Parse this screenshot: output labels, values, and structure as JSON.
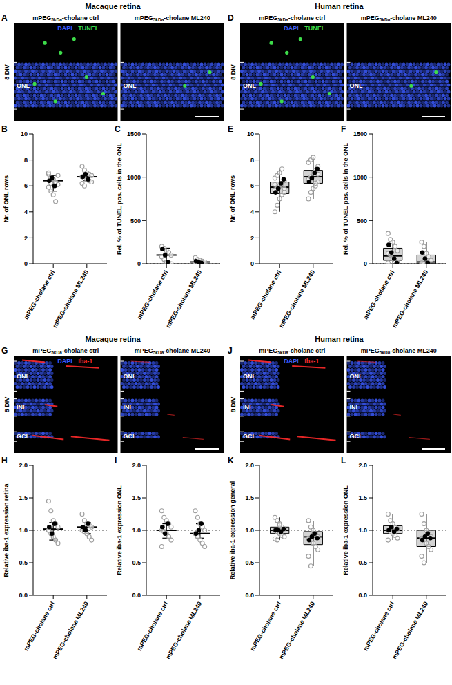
{
  "images": [
    {
      "panel": "A",
      "title": "Macaque retina",
      "side_label": "8 DIV",
      "conditions": [
        "mPEG5kDa-cholane ctrl",
        "mPEG5kDa-cholane ML240"
      ],
      "subscript": "5kDa",
      "stains": [
        {
          "text": "DAPI",
          "color": "#3b5bff"
        },
        {
          "text": "TUNEL",
          "color": "#3ddc4a"
        }
      ],
      "layers": [
        "ONL"
      ]
    },
    {
      "panel": "D",
      "title": "Human retina",
      "side_label": "8 DIV",
      "conditions": [
        "mPEG5kDa-cholane ctrl",
        "mPEG5kDa-cholane ML240"
      ],
      "subscript": "5kDa",
      "stains": [
        {
          "text": "DAPI",
          "color": "#3b5bff"
        },
        {
          "text": "TUNEL",
          "color": "#3ddc4a"
        }
      ],
      "layers": [
        "ONL"
      ]
    },
    {
      "panel": "G",
      "title": "Macaque retina",
      "side_label": "8 DIV",
      "conditions": [
        "mPEG5kDa-cholane ctrl",
        "mPEG5kDa-cholane ML240"
      ],
      "subscript": "5kDa",
      "stains": [
        {
          "text": "DAPI",
          "color": "#3b5bff"
        },
        {
          "text": "Iba-1",
          "color": "#ff2a2a"
        }
      ],
      "layers": [
        "ONL",
        "INL",
        "GCL"
      ]
    },
    {
      "panel": "J",
      "title": "Human retina",
      "side_label": "8 DIV",
      "conditions": [
        "mPEG5kDa-cholane ctrl",
        "mPEG5kDa-cholane ML240"
      ],
      "subscript": "5kDa",
      "stains": [
        {
          "text": "DAPI",
          "color": "#3b5bff"
        },
        {
          "text": "Iba-1",
          "color": "#ff2a2a"
        }
      ],
      "layers": [
        "ONL",
        "INL",
        "GCL"
      ]
    }
  ],
  "chart_data": [
    {
      "panel": "B",
      "type": "scatter",
      "y_label": "Nr. of ONL rows",
      "categories": [
        "mPEG-cholane ctrl",
        "mPEG-cholane ML240"
      ],
      "ylim": [
        0,
        10
      ],
      "yticks": [
        0,
        2,
        4,
        6,
        8,
        10
      ],
      "points": [
        [
          6.9,
          6.6,
          6.5,
          6.3,
          6.1,
          5.9,
          5.6,
          5.3,
          4.8,
          6.8,
          7.0,
          6.2
        ],
        [
          7.5,
          7.2,
          7.0,
          6.9,
          6.8,
          6.7,
          6.6,
          6.5,
          6.4,
          6.3,
          6.2,
          6.0
        ]
      ],
      "points_color": "#9e9e9e",
      "means": [
        [
          6.4,
          6.6,
          6.0
        ],
        [
          6.7,
          6.9,
          6.5
        ]
      ],
      "means_color": "#000000",
      "center": [
        6.4,
        6.7
      ],
      "whiskers": [
        [
          5.6,
          6.8
        ],
        [
          6.4,
          7.0
        ]
      ]
    },
    {
      "panel": "C",
      "type": "scatter",
      "y_label": "Rel. % of TUNEL pos. cells in the ONL",
      "categories": [
        "mPEG-cholane ctrl",
        "mPEG-cholane ML240"
      ],
      "ylim": [
        0,
        1500
      ],
      "yticks": [
        0,
        500,
        1000,
        1500
      ],
      "reference_line": 0,
      "points": [
        [
          200,
          180,
          150,
          130,
          100,
          80,
          50,
          20,
          10,
          0
        ],
        [
          70,
          50,
          40,
          30,
          20,
          10,
          5,
          0
        ]
      ],
      "points_color": "#9e9e9e",
      "means": [
        [
          170,
          100,
          20
        ],
        [
          30,
          15,
          10
        ]
      ],
      "means_color": "#000000",
      "center": [
        100,
        20
      ],
      "whiskers": [
        [
          20,
          180
        ],
        [
          5,
          40
        ]
      ]
    },
    {
      "panel": "E",
      "type": "scatter",
      "y_label": "Nr. of ONL rows",
      "categories": [
        "mPEG-cholane ctrl",
        "mPEG-cholane ML240"
      ],
      "ylim": [
        0,
        10
      ],
      "yticks": [
        0,
        2,
        4,
        6,
        8,
        10
      ],
      "points": [
        [
          4.0,
          4.5,
          5.0,
          5.3,
          5.5,
          5.7,
          5.9,
          6.0,
          6.2,
          6.4,
          6.6,
          6.8,
          7.0,
          7.3,
          5.8,
          6.1
        ],
        [
          5.0,
          5.5,
          5.8,
          6.0,
          6.3,
          6.5,
          6.7,
          7.0,
          7.2,
          7.5,
          7.8,
          8.0,
          8.2,
          6.2,
          6.9
        ]
      ],
      "points_color": "#9e9e9e",
      "means": [
        [
          5.5,
          5.8,
          6.2,
          6.5
        ],
        [
          6.3,
          6.6,
          7.0,
          7.3
        ]
      ],
      "means_color": "#000000",
      "box": [
        [
          5.4,
          6.3
        ],
        [
          6.2,
          7.2
        ]
      ],
      "box_color": "#c8c8c8",
      "center": [
        5.9,
        6.7
      ],
      "whiskers": [
        [
          4.0,
          7.3
        ],
        [
          5.0,
          8.2
        ]
      ]
    },
    {
      "panel": "F",
      "type": "scatter",
      "y_label": "Rel. % of TUNEL pos. cells in the ONL",
      "categories": [
        "mPEG-cholane ctrl",
        "mPEG-cholane ML240"
      ],
      "ylim": [
        0,
        1500
      ],
      "yticks": [
        0,
        500,
        1000,
        1500
      ],
      "reference_line": 0,
      "points": [
        [
          350,
          280,
          250,
          200,
          150,
          120,
          100,
          60,
          40,
          20,
          10
        ],
        [
          250,
          200,
          120,
          80,
          40,
          10,
          0
        ]
      ],
      "points_color": "#9e9e9e",
      "means": [
        [
          220,
          130,
          60,
          10
        ],
        [
          130,
          60,
          10
        ]
      ],
      "means_color": "#000000",
      "box": [
        [
          40,
          180
        ],
        [
          0,
          100
        ]
      ],
      "box_color": "#c8c8c8",
      "center": [
        90,
        20
      ],
      "whiskers": [
        [
          10,
          300
        ],
        [
          0,
          250
        ]
      ]
    },
    {
      "panel": "H",
      "type": "scatter",
      "y_label": "Relative iba-1 expression retina",
      "categories": [
        "mPEG-cholane ctrl",
        "mPEG-cholane ML240"
      ],
      "ylim": [
        0,
        2
      ],
      "yticks": [
        {
          "value": 0,
          "label": "0.0"
        },
        0.5,
        {
          "value": 1,
          "label": "1.0"
        },
        1.5,
        {
          "value": 2,
          "label": "2.0"
        }
      ],
      "reference_line": 1,
      "points": [
        [
          1.45,
          1.3,
          1.15,
          1.1,
          1.05,
          1.0,
          0.95,
          0.9,
          0.85,
          0.8,
          1.0
        ],
        [
          1.25,
          1.15,
          1.1,
          1.08,
          1.05,
          1.0,
          0.98,
          0.95,
          0.9,
          0.85
        ]
      ],
      "points_color": "#9e9e9e",
      "means": [
        [
          1.05,
          0.95,
          1.1
        ],
        [
          1.05,
          1.0,
          1.1
        ]
      ],
      "means_color": "#000000",
      "center": [
        1.02,
        1.05
      ],
      "whiskers": [
        [
          0.85,
          1.12
        ],
        [
          0.95,
          1.12
        ]
      ]
    },
    {
      "panel": "I",
      "type": "scatter",
      "y_label": "Relative iba-1 expression ONL",
      "categories": [
        "mPEG-cholane ctrl",
        "mPEG-cholane ML240"
      ],
      "ylim": [
        0,
        2
      ],
      "yticks": [
        {
          "value": 0,
          "label": "0.0"
        },
        0.5,
        {
          "value": 1,
          "label": "1.0"
        },
        1.5,
        {
          "value": 2,
          "label": "2.0"
        }
      ],
      "reference_line": 1,
      "points": [
        [
          1.3,
          1.2,
          1.15,
          1.1,
          1.05,
          1.0,
          0.98,
          0.95,
          0.9,
          0.85,
          0.75
        ],
        [
          1.3,
          1.2,
          1.1,
          1.05,
          1.0,
          0.95,
          0.9,
          0.85,
          0.8,
          0.75
        ]
      ],
      "points_color": "#9e9e9e",
      "means": [
        [
          1.05,
          0.95,
          1.1
        ],
        [
          0.95,
          1.0,
          1.1
        ]
      ],
      "means_color": "#000000",
      "center": [
        1.0,
        0.95
      ],
      "whiskers": [
        [
          0.88,
          1.1
        ],
        [
          0.88,
          1.1
        ]
      ]
    },
    {
      "panel": "K",
      "type": "scatter",
      "y_label": "Relative iba-1 expression general",
      "categories": [
        "mPEG-cholane ctrl",
        "mPEG-cholane ML240"
      ],
      "ylim": [
        0,
        2
      ],
      "yticks": [
        {
          "value": 0,
          "label": "0.0"
        },
        0.5,
        {
          "value": 1,
          "label": "1.0"
        },
        1.5,
        {
          "value": 2,
          "label": "2.0"
        }
      ],
      "reference_line": 1,
      "points": [
        [
          1.2,
          1.15,
          1.1,
          1.05,
          1.02,
          1.0,
          0.98,
          0.95,
          0.92,
          0.9,
          0.87,
          0.85,
          1.08
        ],
        [
          1.15,
          1.05,
          1.0,
          0.95,
          0.9,
          0.88,
          0.85,
          0.8,
          0.75,
          0.7,
          0.6,
          0.45,
          0.93
        ]
      ],
      "points_color": "#9e9e9e",
      "means": [
        [
          1.0,
          1.0,
          0.98,
          1.02
        ],
        [
          0.85,
          0.9,
          0.95,
          0.88
        ]
      ],
      "means_color": "#000000",
      "box": [
        [
          0.95,
          1.05
        ],
        [
          0.78,
          0.98
        ]
      ],
      "box_color": "#c8c8c8",
      "center": [
        1.0,
        0.9
      ],
      "whiskers": [
        [
          0.85,
          1.2
        ],
        [
          0.45,
          1.15
        ]
      ]
    },
    {
      "panel": "L",
      "type": "scatter",
      "y_label": "Relative iba-1 expression ONL",
      "categories": [
        "mPEG-cholane ctrl",
        "mPEG-cholane ML240"
      ],
      "ylim": [
        0,
        2
      ],
      "yticks": [
        {
          "value": 0,
          "label": "0.0"
        },
        0.5,
        {
          "value": 1,
          "label": "1.0"
        },
        1.5,
        {
          "value": 2,
          "label": "2.0"
        }
      ],
      "reference_line": 1,
      "points": [
        [
          1.25,
          1.15,
          1.1,
          1.05,
          1.02,
          1.0,
          0.98,
          0.95,
          0.92,
          0.88,
          0.85
        ],
        [
          1.25,
          1.1,
          1.0,
          0.95,
          0.9,
          0.88,
          0.85,
          0.8,
          0.75,
          0.7,
          0.6,
          0.5
        ]
      ],
      "points_color": "#9e9e9e",
      "means": [
        [
          1.0,
          1.05,
          0.98,
          1.02
        ],
        [
          0.85,
          0.9,
          0.95,
          0.88
        ]
      ],
      "means_color": "#000000",
      "box": [
        [
          0.95,
          1.07
        ],
        [
          0.75,
          1.0
        ]
      ],
      "box_color": "#c8c8c8",
      "center": [
        1.0,
        0.88
      ],
      "whiskers": [
        [
          0.85,
          1.25
        ],
        [
          0.5,
          1.25
        ]
      ]
    }
  ]
}
